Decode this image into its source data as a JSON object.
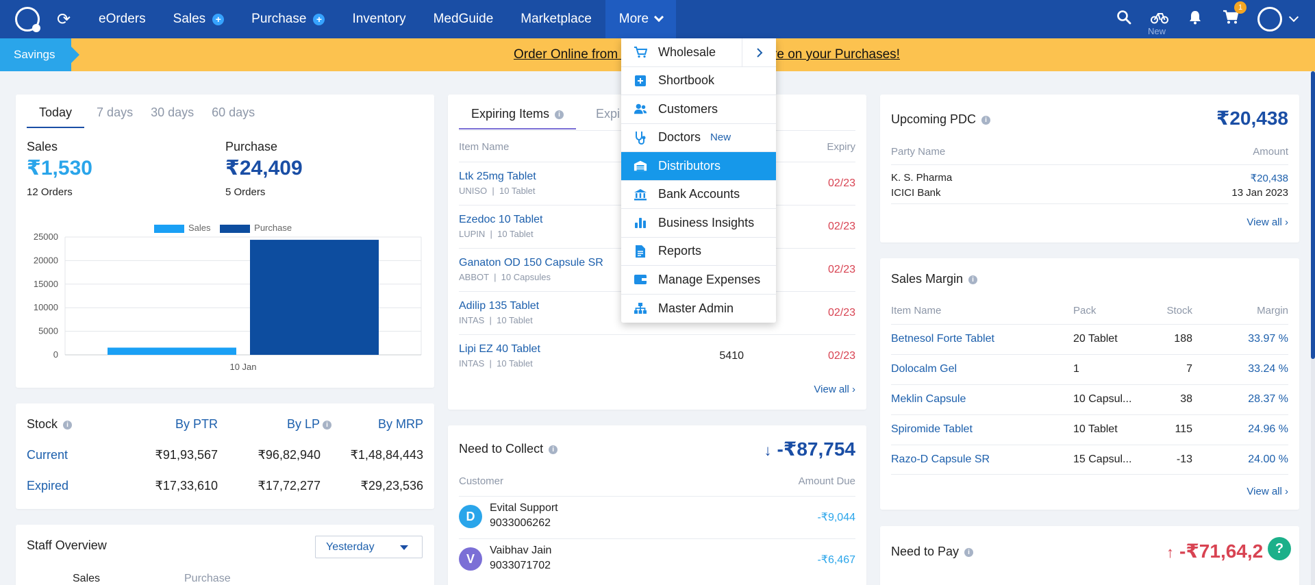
{
  "nav": {
    "items": [
      {
        "label": "eOrders",
        "plus": false
      },
      {
        "label": "Sales",
        "plus": true
      },
      {
        "label": "Purchase",
        "plus": true
      },
      {
        "label": "Inventory",
        "plus": false
      },
      {
        "label": "MedGuide",
        "plus": false
      },
      {
        "label": "Marketplace",
        "plus": false
      },
      {
        "label": "More",
        "plus": false
      }
    ],
    "new_label": "New",
    "cart_count": "1",
    "icons": [
      "search-icon",
      "bike-icon",
      "bell-icon",
      "cart-icon",
      "user-avatar-icon"
    ]
  },
  "banner": {
    "tag": "Savings",
    "text": "Order Online from Marketplace and Save More on your Purchases!"
  },
  "sales_card": {
    "tabs": [
      "Today",
      "7 days",
      "30 days",
      "60 days"
    ],
    "active_tab": "Today",
    "sales_label": "Sales",
    "sales_value": "₹1,530",
    "sales_orders": "12 Orders",
    "purchase_label": "Purchase",
    "purchase_value": "₹24,409",
    "purchase_orders": "5 Orders"
  },
  "chart_data": {
    "type": "bar",
    "categories": [
      "10 Jan"
    ],
    "series": [
      {
        "name": "Sales",
        "values": [
          1530
        ],
        "color": "#1aa0f5"
      },
      {
        "name": "Purchase",
        "values": [
          24409
        ],
        "color": "#0d4d9f"
      }
    ],
    "ylim": [
      0,
      25000
    ],
    "yticks": [
      "0",
      "5000",
      "10000",
      "15000",
      "20000",
      "25000"
    ],
    "grid": true,
    "legend": "top-center"
  },
  "stock": {
    "title": "Stock",
    "cols": [
      "By PTR",
      "By LP",
      "By MRP"
    ],
    "rows": [
      {
        "label": "Current",
        "values": [
          "₹91,93,567",
          "₹96,82,940",
          "₹1,48,84,443"
        ]
      },
      {
        "label": "Expired",
        "values": [
          "₹17,33,610",
          "₹17,72,277",
          "₹29,23,536"
        ]
      }
    ]
  },
  "staff": {
    "title": "Staff Overview",
    "select": "Yesterday",
    "cols": [
      "Sales",
      "Purchase"
    ]
  },
  "expiring": {
    "tabs": [
      "Expiring Items",
      "Expi"
    ],
    "col_item": "Item Name",
    "col_expiry": "Expiry",
    "rows": [
      {
        "name": "Ltk 25mg Tablet",
        "mfr": "UNISO",
        "pack": "10 Tablet",
        "stock": "",
        "expiry": "02/23"
      },
      {
        "name": "Ezedoc 10 Tablet",
        "mfr": "LUPIN",
        "pack": "10 Tablet",
        "stock": "",
        "expiry": "02/23"
      },
      {
        "name": "Ganaton OD 150 Capsule SR",
        "mfr": "ABBOT",
        "pack": "10 Capsules",
        "stock": "",
        "expiry": "02/23"
      },
      {
        "name": "Adilip 135 Tablet",
        "mfr": "INTAS",
        "pack": "10 Tablet",
        "stock": "",
        "expiry": "02/23"
      },
      {
        "name": "Lipi EZ 40 Tablet",
        "mfr": "INTAS",
        "pack": "10 Tablet",
        "stock": "5410",
        "expiry": "02/23"
      }
    ],
    "view_all": "View all"
  },
  "collect": {
    "title": "Need to Collect",
    "amount": "-₹87,754",
    "col_customer": "Customer",
    "col_amount": "Amount Due",
    "rows": [
      {
        "initial": "D",
        "name": "Evital Support",
        "phone": "9033006262",
        "amount": "-₹9,044",
        "color": "#2aa5ea"
      },
      {
        "initial": "V",
        "name": "Vaibhav Jain",
        "phone": "9033071702",
        "amount": "-₹6,467",
        "color": "#7b6fd6"
      }
    ]
  },
  "pdc": {
    "title": "Upcoming PDC",
    "amount": "₹20,438",
    "col_party": "Party Name",
    "col_amount": "Amount",
    "party": "K. S. Pharma",
    "bank": "ICICI Bank",
    "row_amount": "₹20,438",
    "date": "13 Jan 2023",
    "view_all": "View all"
  },
  "margin": {
    "title": "Sales Margin",
    "cols": [
      "Item Name",
      "Pack",
      "Stock",
      "Margin"
    ],
    "rows": [
      {
        "name": "Betnesol Forte Tablet",
        "pack": "20 Tablet",
        "stock": "188",
        "margin": "33.97 %"
      },
      {
        "name": "Dolocalm Gel",
        "pack": "1",
        "stock": "7",
        "margin": "33.24 %"
      },
      {
        "name": "Meklin Capsule",
        "pack": "10 Capsul...",
        "stock": "38",
        "margin": "28.37 %"
      },
      {
        "name": "Spiromide Tablet",
        "pack": "10 Tablet",
        "stock": "115",
        "margin": "24.96 %"
      },
      {
        "name": "Razo-D Capsule SR",
        "pack": "15 Capsul...",
        "stock": "-13",
        "margin": "24.00 %"
      }
    ],
    "view_all": "View all"
  },
  "pay": {
    "title": "Need to Pay",
    "amount": "-₹71,64,2"
  },
  "more_menu": {
    "items": [
      {
        "label": "Wholesale",
        "icon": "cart-icon",
        "submenu": true
      },
      {
        "label": "Shortbook",
        "icon": "plus-square-icon"
      },
      {
        "label": "Customers",
        "icon": "people-icon"
      },
      {
        "label": "Doctors",
        "icon": "stethoscope-icon",
        "badge": "New"
      },
      {
        "label": "Distributors",
        "icon": "warehouse-icon",
        "highlighted": true
      },
      {
        "label": "Bank Accounts",
        "icon": "bank-icon"
      },
      {
        "label": "Business Insights",
        "icon": "bar-chart-icon"
      },
      {
        "label": "Reports",
        "icon": "document-icon"
      },
      {
        "label": "Manage Expenses",
        "icon": "wallet-icon"
      },
      {
        "label": "Master Admin",
        "icon": "org-chart-icon"
      }
    ]
  },
  "help": "?"
}
